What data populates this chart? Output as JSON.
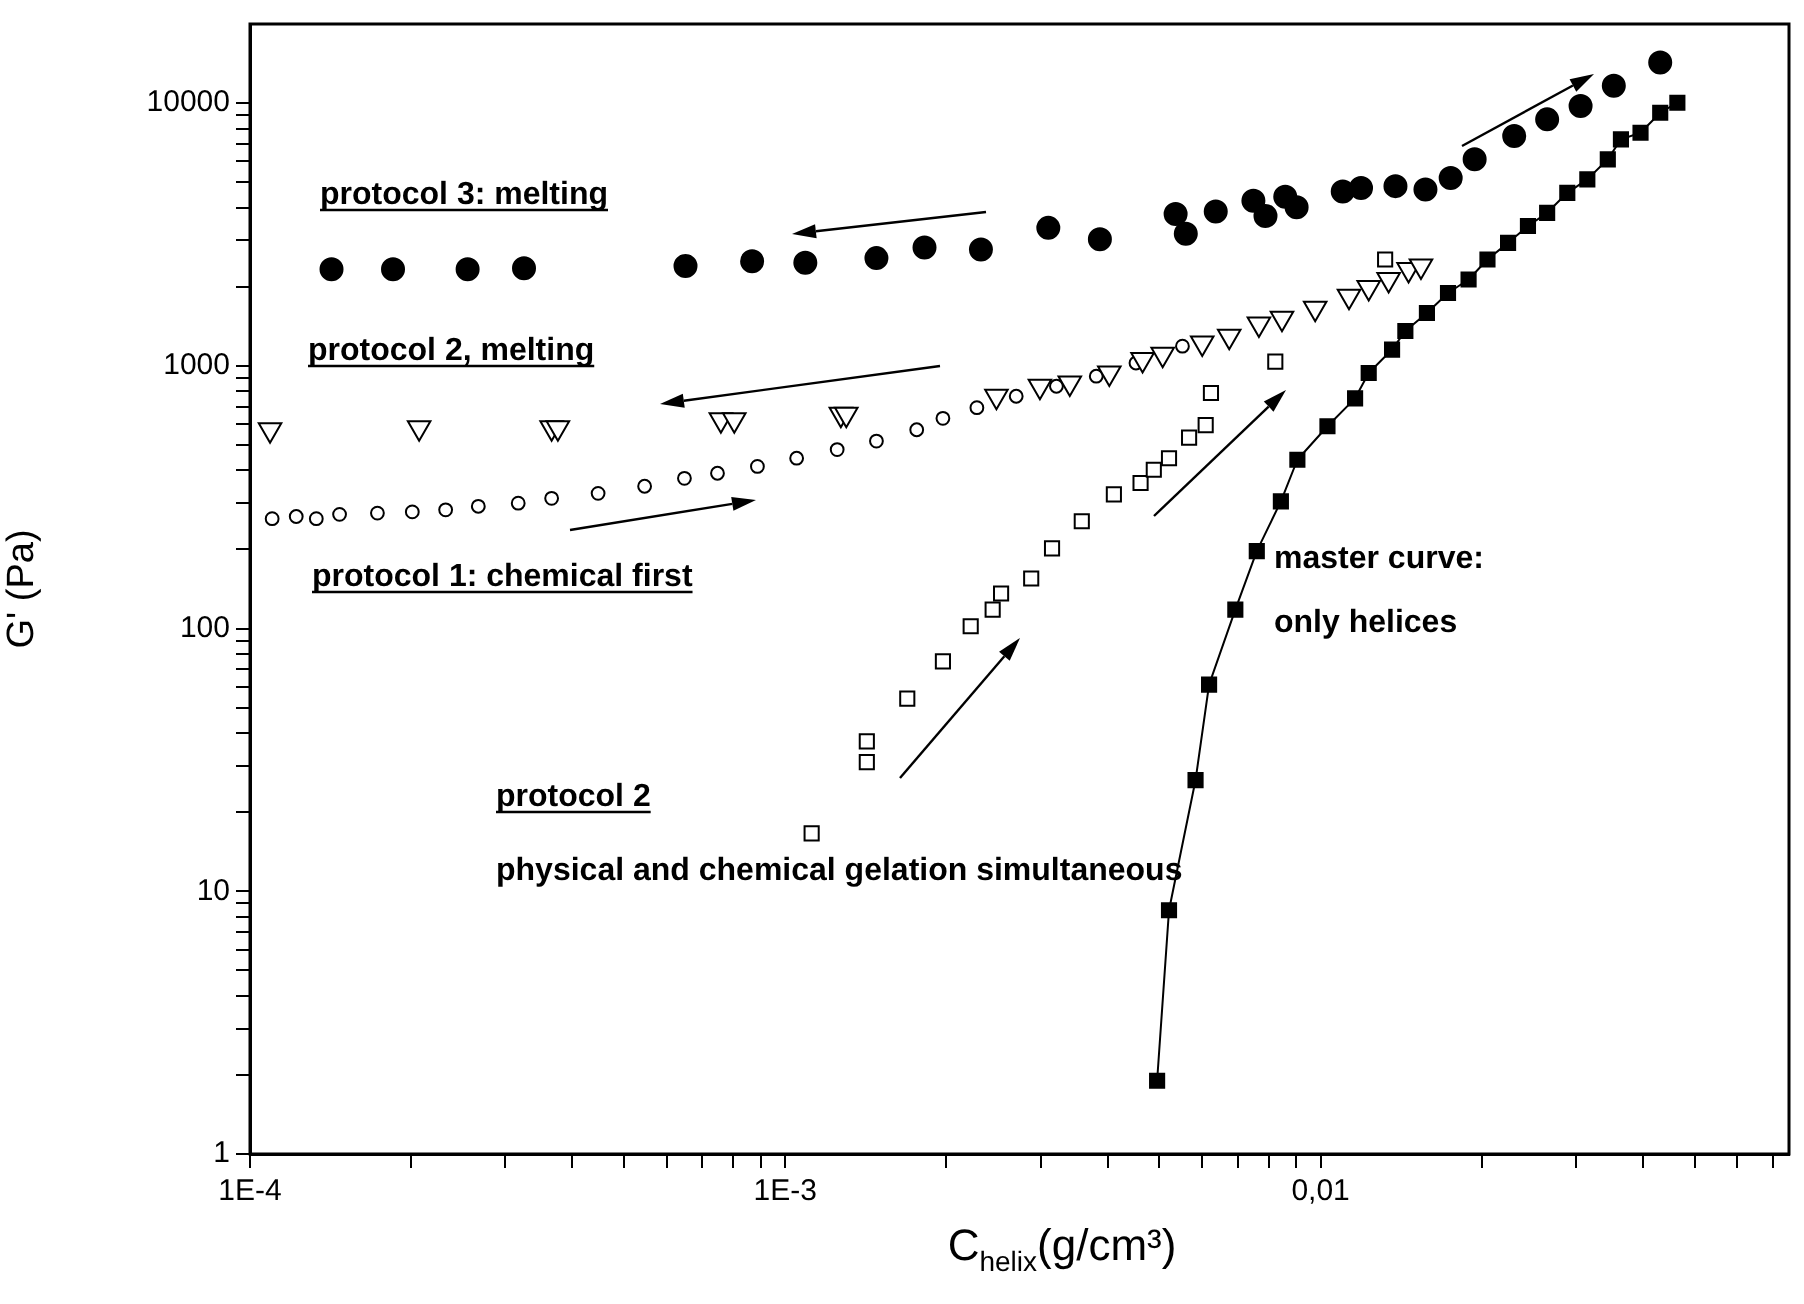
{
  "chart_data": {
    "type": "scatter",
    "xlabel": "C$_{helix}$(g/cm³)",
    "ylabel": "G' (Pa)",
    "log": "xy",
    "grid": false,
    "legend": false,
    "xlim": [
      0.0001,
      0.075
    ],
    "ylim": [
      1,
      20000
    ],
    "xticks": [
      {
        "value": 0.0001,
        "label": "1E-4"
      },
      {
        "value": 0.0002,
        "label": null
      },
      {
        "value": 0.0003,
        "label": null
      },
      {
        "value": 0.0004,
        "label": null
      },
      {
        "value": 0.0005,
        "label": null
      },
      {
        "value": 0.0006,
        "label": null
      },
      {
        "value": 0.0007,
        "label": null
      },
      {
        "value": 0.0008,
        "label": null
      },
      {
        "value": 0.0009,
        "label": null
      },
      {
        "value": 0.001,
        "label": "1E-3"
      },
      {
        "value": 0.002,
        "label": null
      },
      {
        "value": 0.003,
        "label": null
      },
      {
        "value": 0.004,
        "label": null
      },
      {
        "value": 0.005,
        "label": null
      },
      {
        "value": 0.006,
        "label": null
      },
      {
        "value": 0.007,
        "label": null
      },
      {
        "value": 0.008,
        "label": null
      },
      {
        "value": 0.009,
        "label": null
      },
      {
        "value": 0.01,
        "label": "0,01"
      },
      {
        "value": 0.02,
        "label": null
      },
      {
        "value": 0.03,
        "label": null
      },
      {
        "value": 0.04,
        "label": null
      },
      {
        "value": 0.05,
        "label": null
      },
      {
        "value": 0.06,
        "label": null
      },
      {
        "value": 0.07,
        "label": null
      }
    ],
    "yticks": [
      1,
      {
        "value": 2,
        "label": null
      },
      {
        "value": 3,
        "label": null
      },
      {
        "value": 4,
        "label": null
      },
      {
        "value": 5,
        "label": null
      },
      {
        "value": 6,
        "label": null
      },
      {
        "value": 7,
        "label": null
      },
      {
        "value": 8,
        "label": null
      },
      {
        "value": 9,
        "label": null
      },
      10,
      {
        "value": 20,
        "label": null
      },
      {
        "value": 30,
        "label": null
      },
      {
        "value": 40,
        "label": null
      },
      {
        "value": 50,
        "label": null
      },
      {
        "value": 60,
        "label": null
      },
      {
        "value": 70,
        "label": null
      },
      {
        "value": 80,
        "label": null
      },
      {
        "value": 90,
        "label": null
      },
      100,
      {
        "value": 200,
        "label": null
      },
      {
        "value": 300,
        "label": null
      },
      {
        "value": 400,
        "label": null
      },
      {
        "value": 500,
        "label": null
      },
      {
        "value": 600,
        "label": null
      },
      {
        "value": 700,
        "label": null
      },
      {
        "value": 800,
        "label": null
      },
      {
        "value": 900,
        "label": null
      },
      1000,
      {
        "value": 2000,
        "label": null
      },
      {
        "value": 3000,
        "label": null
      },
      {
        "value": 4000,
        "label": null
      },
      {
        "value": 5000,
        "label": null
      },
      {
        "value": 6000,
        "label": null
      },
      {
        "value": 7000,
        "label": null
      },
      {
        "value": 8000,
        "label": null
      },
      {
        "value": 9000,
        "label": null
      },
      10000
    ],
    "series": [
      {
        "name": "protocol 3: melting",
        "color": "#000000",
        "type": "scatter",
        "marker": "circle",
        "x": [
          0.000142,
          0.000185,
          0.000255,
          0.000325,
          0.000651,
          0.000867,
          0.00109,
          0.00148,
          0.00182,
          0.00232,
          0.0031,
          0.00387,
          0.00536,
          0.0056,
          0.00637,
          0.00749,
          0.00789,
          0.00859,
          0.00902,
          0.011,
          0.0119,
          0.0138,
          0.0157,
          0.0175,
          0.0194,
          0.023,
          0.0265,
          0.0306,
          0.0353,
          0.0431
        ],
        "values": [
          2330,
          2330,
          2330,
          2350,
          2400,
          2500,
          2470,
          2570,
          2820,
          2770,
          3350,
          3030,
          3780,
          3180,
          3870,
          4250,
          3720,
          4400,
          4010,
          4610,
          4750,
          4830,
          4690,
          5190,
          6110,
          7500,
          8670,
          9750,
          11640,
          14260
        ]
      },
      {
        "name": "protocol 2, melting",
        "color": "#000000",
        "type": "scatter",
        "marker": "triangle",
        "x": [
          0.000109,
          0.000207,
          0.000366,
          0.000376,
          0.000758,
          0.000803,
          0.00127,
          0.0013,
          0.00248,
          0.00299,
          0.0034,
          0.00403,
          0.00465,
          0.00507,
          0.00601,
          0.00675,
          0.00767,
          0.00847,
          0.00977,
          0.0113,
          0.0123,
          0.0134,
          0.0146,
          0.0154
        ],
        "values": [
          571,
          581,
          581,
          581,
          624,
          624,
          654,
          654,
          766,
          836,
          860,
          939,
          1056,
          1107,
          1222,
          1297,
          1442,
          1518,
          1658,
          1841,
          1986,
          2131,
          2326,
          2397
        ]
      },
      {
        "name": "protocol 1: chemical first",
        "color": "#000000",
        "type": "scatter",
        "marker": "circle",
        "x": [
          0.00011,
          0.000122,
          0.000133,
          0.000147,
          0.000173,
          0.000201,
          0.000232,
          0.000267,
          0.000317,
          0.000366,
          0.000447,
          0.000546,
          0.000648,
          0.000747,
          0.000887,
          0.00105,
          0.00125,
          0.00148,
          0.00176,
          0.00197,
          0.00228,
          0.0027,
          0.00321,
          0.00381,
          0.00452,
          0.00552
        ],
        "values": [
          262,
          267,
          262,
          272,
          275,
          278,
          283,
          292,
          300,
          313,
          327,
          348,
          373,
          390,
          414,
          445,
          480,
          517,
          571,
          631,
          693,
          766,
          836,
          913,
          1025,
          1188
        ]
      },
      {
        "color": "#000000",
        "type": "scatter",
        "marker": "square",
        "x": [
          0.00112,
          0.00142,
          0.00142,
          0.00169,
          0.00197,
          0.00222,
          0.00244,
          0.00253,
          0.00288,
          0.00315,
          0.00358,
          0.00411,
          0.00461,
          0.00488,
          0.00521,
          0.00568,
          0.0061,
          0.00624,
          0.00823,
          0.0132
        ],
        "values": [
          16.6,
          31,
          37.2,
          54.1,
          75,
          102,
          118,
          136,
          155,
          202,
          256,
          324,
          358,
          402,
          445,
          533,
          595,
          788,
          1038,
          2540
        ]
      },
      {
        "name": "master curve:",
        "color": "#000000",
        "type": "line",
        "marker": "square",
        "x": [
          0.00495,
          0.00521,
          0.00584,
          0.00619,
          0.00693,
          0.0076,
          0.00843,
          0.00905,
          0.0103,
          0.0116,
          0.0123,
          0.0136,
          0.0144,
          0.0158,
          0.0173,
          0.0189,
          0.0205,
          0.0224,
          0.0244,
          0.0265,
          0.0289,
          0.0315,
          0.0344,
          0.0364,
          0.0396,
          0.0431,
          0.0464
        ],
        "values": [
          1.9,
          8.47,
          26.5,
          61.2,
          118,
          197,
          305,
          439,
          589,
          752,
          939,
          1153,
          1357,
          1589,
          1893,
          2131,
          2540,
          2938,
          3404,
          3822,
          4555,
          5124,
          6109,
          7278,
          7709,
          9192,
          10030
        ]
      }
    ],
    "annotations": [
      "protocol 2",
      "physical and chemical gelation simultaneous",
      "only helices"
    ]
  }
}
